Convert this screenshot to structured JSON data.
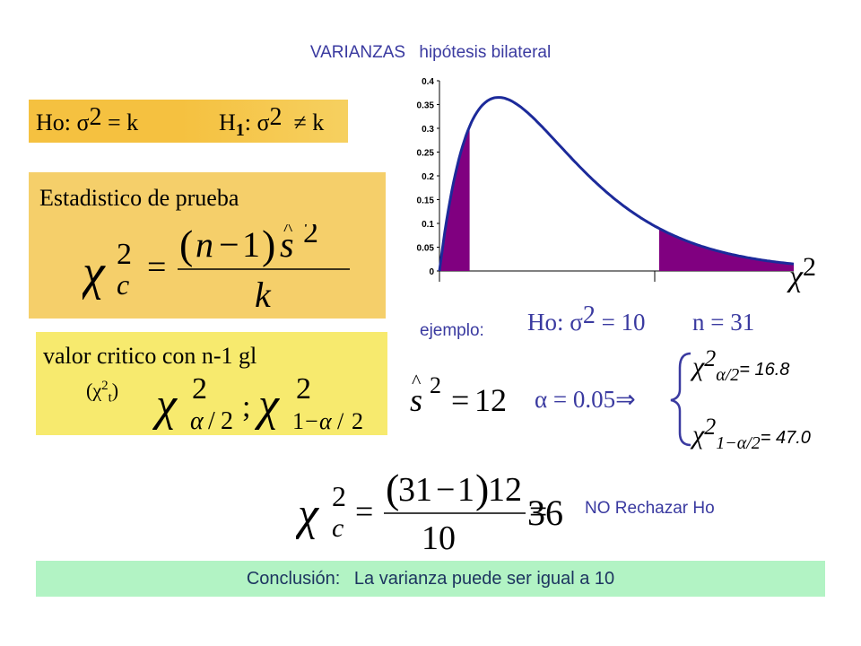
{
  "title": {
    "part1": "VARIANZAS",
    "part2": "hipótesis bilateral"
  },
  "hypotheses": {
    "h0": "Ho: σ2 = k",
    "h1": "H1: σ2 ≠ k"
  },
  "statistic": {
    "label": "Estadistico de prueba"
  },
  "critical": {
    "label": "valor critico con n-1 gl",
    "notation": "(χ2t)"
  },
  "chart_data": {
    "type": "area",
    "distribution": "chi-square",
    "ylim": [
      0,
      0.4
    ],
    "y_ticks": [
      "0",
      "0.05",
      "0.1",
      "0.15",
      "0.2",
      "0.25",
      "0.3",
      "0.35",
      "0.4"
    ],
    "x_label": "χ2",
    "shaded": "two tails",
    "fill_color": "#800080",
    "curve_color": "#1c2a9a"
  },
  "example": {
    "label": "ejemplo:",
    "h0": "Ho: σ2 = 10",
    "n": "n = 31",
    "s2": "= 12",
    "alpha": "α = 0.05⇒",
    "crit_low_value": "= 16.8",
    "crit_high_value": "= 47.0"
  },
  "calculation": {
    "decision": "NO  Rechazar Ho"
  },
  "conclusion": {
    "label": "Conclusión:",
    "text": "La varianza puede ser igual a 10"
  },
  "colors": {
    "hyp_bg": "#f5c140",
    "stat_bg": "#f5cf6a",
    "crit_bg": "#f7ea6e",
    "concl_bg": "#b2f3c4",
    "title": "#3a3aa0"
  }
}
